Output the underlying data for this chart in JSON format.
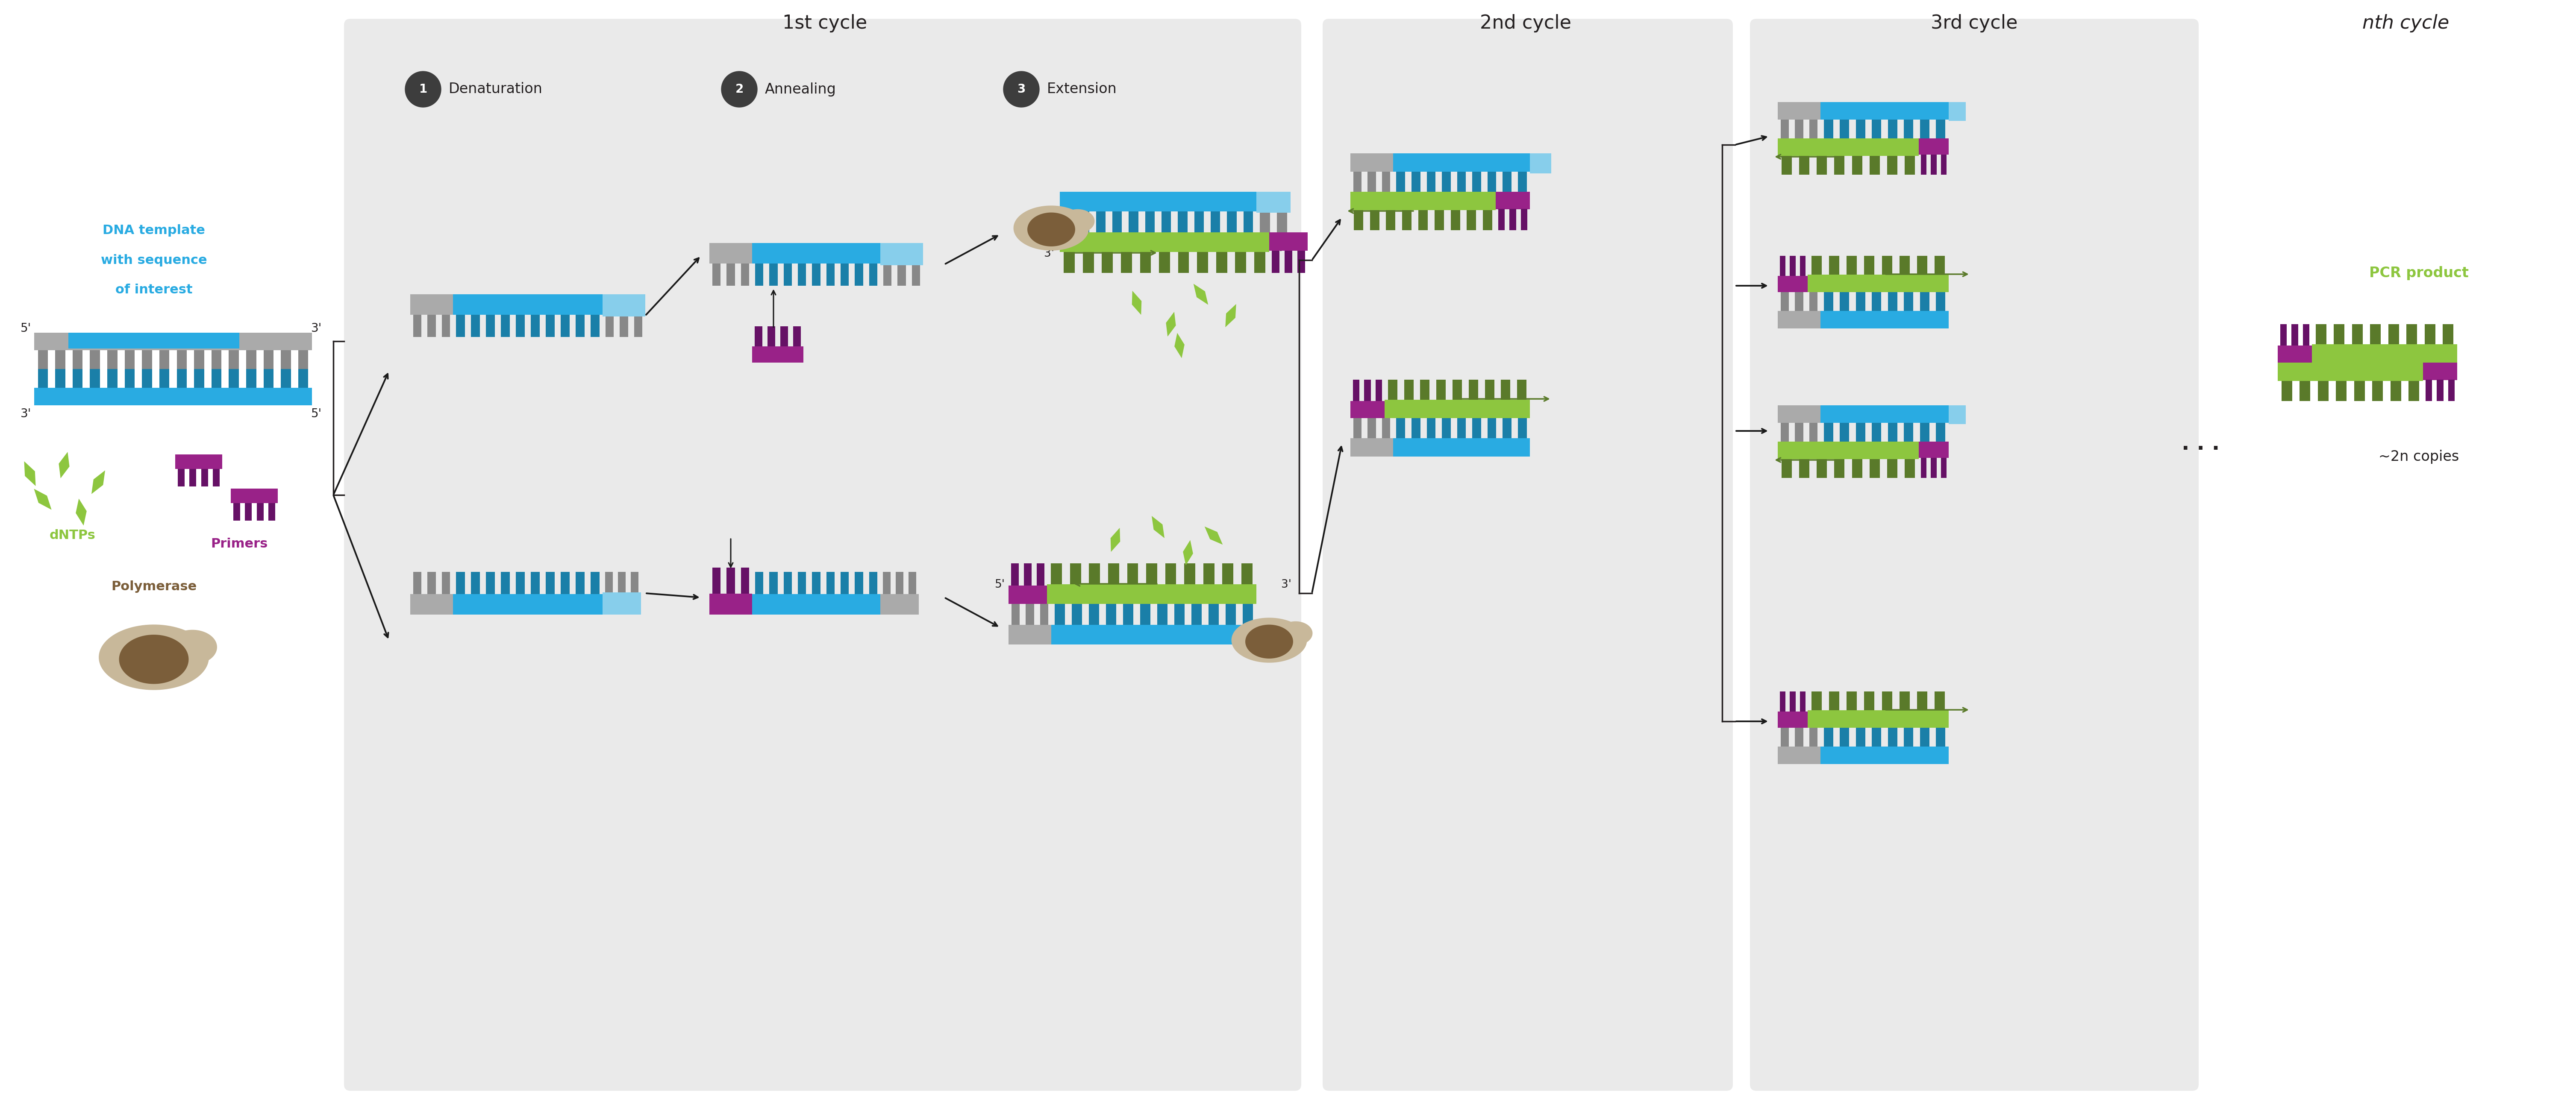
{
  "bg_main": "#ffffff",
  "bg_cycle": "#EAEAEA",
  "c_blue": "#29ABE2",
  "c_blue_light": "#87CEEB",
  "c_gray": "#AAAAAA",
  "c_gray_dark": "#888888",
  "c_green": "#8DC63F",
  "c_green_dark": "#5A7A2A",
  "c_magenta": "#992288",
  "c_magenta_dark": "#661166",
  "c_brown": "#7B5E3A",
  "c_tan": "#C8B89A",
  "c_black": "#231F20",
  "c_circle": "#3D3D3D",
  "cycle1_label": "1st cycle",
  "cycle2_label": "2nd cycle",
  "cycle3_label": "3rd cycle",
  "nth_label": "nth cycle",
  "step1_label": "Denaturation",
  "step2_label": "Annealing",
  "step3_label": "Extension",
  "dna_label1": "DNA template",
  "dna_label2": "with sequence",
  "dna_label3": "of interest",
  "dntps_label": "dNTPs",
  "primers_label": "Primers",
  "polymerase_label": "Polymerase",
  "pcr_product_label": "PCR product",
  "copies_label": "~2n copies"
}
